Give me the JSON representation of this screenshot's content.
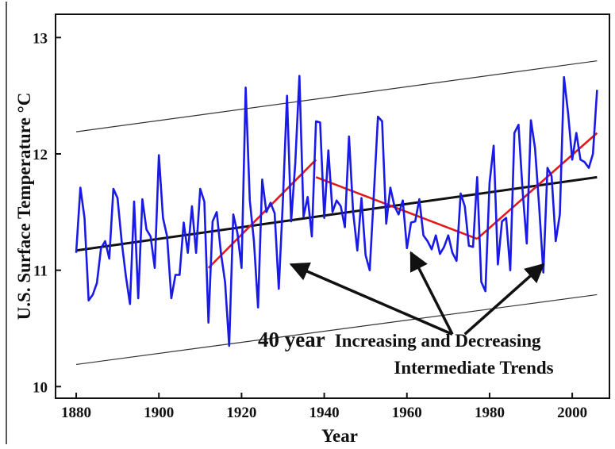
{
  "chart_data": {
    "type": "line",
    "xlabel": "Year",
    "ylabel": "U.S. Surface Temperature °C",
    "xlim": [
      1875,
      2009
    ],
    "ylim": [
      9.9,
      13.2
    ],
    "xticks": [
      1880,
      1900,
      1920,
      1940,
      1960,
      1980,
      2000
    ],
    "yticks": [
      10,
      11,
      12,
      13
    ],
    "grid": false,
    "series": [
      {
        "color": "#1a1ae6",
        "x": [
          1880,
          1881,
          1882,
          1883,
          1884,
          1885,
          1886,
          1887,
          1888,
          1889,
          1890,
          1891,
          1892,
          1893,
          1894,
          1895,
          1896,
          1897,
          1898,
          1899,
          1900,
          1901,
          1902,
          1903,
          1904,
          1905,
          1906,
          1907,
          1908,
          1909,
          1910,
          1911,
          1912,
          1913,
          1914,
          1915,
          1916,
          1917,
          1918,
          1919,
          1920,
          1921,
          1922,
          1923,
          1924,
          1925,
          1926,
          1927,
          1928,
          1929,
          1930,
          1931,
          1932,
          1933,
          1934,
          1935,
          1936,
          1937,
          1938,
          1939,
          1940,
          1941,
          1942,
          1943,
          1944,
          1945,
          1946,
          1947,
          1948,
          1949,
          1950,
          1951,
          1952,
          1953,
          1954,
          1955,
          1956,
          1957,
          1958,
          1959,
          1960,
          1961,
          1962,
          1963,
          1964,
          1965,
          1966,
          1967,
          1968,
          1969,
          1970,
          1971,
          1972,
          1973,
          1974,
          1975,
          1976,
          1977,
          1978,
          1979,
          1980,
          1981,
          1982,
          1983,
          1984,
          1985,
          1986,
          1987,
          1988,
          1989,
          1990,
          1991,
          1992,
          1993,
          1994,
          1995,
          1996,
          1997,
          1998,
          1999,
          2000,
          2001,
          2002,
          2003,
          2004,
          2005,
          2006
        ],
        "values": [
          11.15,
          11.71,
          11.45,
          10.74,
          10.79,
          10.89,
          11.19,
          11.25,
          11.1,
          11.7,
          11.62,
          11.25,
          10.95,
          10.71,
          11.59,
          10.76,
          11.61,
          11.35,
          11.29,
          11.02,
          11.99,
          11.45,
          11.29,
          10.76,
          10.96,
          10.96,
          11.41,
          11.15,
          11.55,
          11.15,
          11.7,
          11.59,
          10.55,
          11.42,
          11.5,
          11.15,
          10.9,
          10.35,
          11.48,
          11.32,
          11.02,
          12.57,
          11.6,
          11.25,
          10.68,
          11.78,
          11.5,
          11.58,
          11.49,
          10.84,
          11.6,
          12.5,
          11.42,
          11.92,
          12.67,
          11.46,
          11.63,
          11.29,
          12.28,
          12.27,
          11.45,
          12.03,
          11.5,
          11.6,
          11.55,
          11.37,
          12.15,
          11.5,
          11.17,
          11.62,
          11.13,
          11.0,
          11.65,
          12.32,
          12.28,
          11.4,
          11.71,
          11.55,
          11.48,
          11.6,
          11.19,
          11.41,
          11.42,
          11.61,
          11.3,
          11.25,
          11.18,
          11.3,
          11.14,
          11.2,
          11.3,
          11.15,
          11.08,
          11.66,
          11.55,
          11.21,
          11.2,
          11.8,
          10.9,
          10.82,
          11.75,
          12.07,
          11.05,
          11.42,
          11.45,
          11.0,
          12.18,
          12.25,
          11.68,
          11.23,
          12.29,
          12.05,
          11.55,
          10.98,
          11.88,
          11.81,
          11.25,
          11.48,
          12.66,
          12.35,
          11.95,
          12.18,
          11.95,
          11.93,
          11.88,
          12.0,
          12.55
        ]
      }
    ],
    "trend_lines": [
      {
        "color": "#111111",
        "width": "thick",
        "x": [
          1880,
          2006
        ],
        "y": [
          11.17,
          11.8
        ]
      },
      {
        "color": "#333333",
        "width": "thin",
        "x": [
          1880,
          2006
        ],
        "y": [
          12.19,
          12.8
        ]
      },
      {
        "color": "#333333",
        "width": "thin",
        "x": [
          1880,
          2006
        ],
        "y": [
          10.19,
          10.79
        ]
      },
      {
        "color": "#e01a1a",
        "width": "medium",
        "x": [
          1912,
          1938
        ],
        "y": [
          11.02,
          11.95
        ]
      },
      {
        "color": "#e01a1a",
        "width": "medium",
        "x": [
          1938,
          1977
        ],
        "y": [
          11.8,
          11.27
        ]
      },
      {
        "color": "#e01a1a",
        "width": "medium",
        "x": [
          1977,
          2006
        ],
        "y": [
          11.27,
          12.18
        ]
      }
    ],
    "annotation": {
      "lead": "40 year",
      "line1": "Increasing and Decreasing",
      "line2": "Intermediate Trends",
      "arrow_targets": [
        {
          "x": 1932,
          "y": 11.05
        },
        {
          "x": 1961,
          "y": 11.15
        },
        {
          "x": 1993,
          "y": 11.05
        }
      ],
      "arrow_origins": [
        {
          "x": 1971,
          "y": 10.45
        },
        {
          "x": 1971,
          "y": 10.45
        },
        {
          "x": 1974,
          "y": 10.45
        }
      ]
    }
  }
}
